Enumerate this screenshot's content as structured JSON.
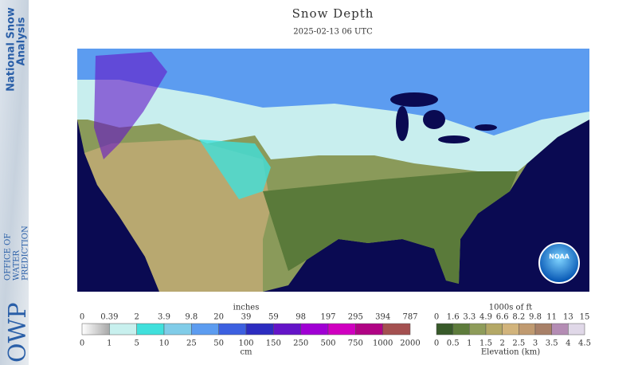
{
  "sidebar": {
    "title_lines": [
      "National Snow",
      "Analysis"
    ],
    "org": "OWP",
    "org_lines": [
      "OFFICE OF",
      "WATER",
      "PREDICTION"
    ]
  },
  "header": {
    "title": "Snow Depth",
    "subtitle": "2025-02-13 06 UTC"
  },
  "map": {
    "logo": "NOAA"
  },
  "legends": [
    {
      "top_unit": "inches",
      "top_labels": [
        0,
        0.39,
        2,
        3.9,
        9.8,
        20,
        39,
        59,
        98,
        197,
        295,
        394,
        787
      ],
      "bottom_unit": "cm",
      "bottom_labels": [
        0,
        1,
        5,
        10,
        25,
        50,
        100,
        150,
        250,
        500,
        750,
        1000,
        2000
      ],
      "colors": [
        "#c8c8c8",
        "#c8f0ee",
        "#40e0dc",
        "#80cce8",
        "#5c9cf0",
        "#3c60e0",
        "#2c2cc0",
        "#6414c8",
        "#a000d4",
        "#d000c0",
        "#b00484",
        "#a45050"
      ]
    },
    {
      "top_unit": "1000s of ft",
      "top_labels": [
        0,
        1.6,
        3.3,
        4.9,
        6.6,
        8.2,
        9.8,
        11,
        13,
        15
      ],
      "bottom_unit": "Elevation (km)",
      "bottom_labels": [
        0,
        0.5,
        1,
        1.5,
        2,
        2.5,
        3,
        3.5,
        4,
        4.5
      ],
      "colors": [
        "#385a2a",
        "#5e7c3c",
        "#8e9c5a",
        "#b4a866",
        "#d2b47c",
        "#c09a70",
        "#a88068",
        "#b48cb4",
        "#e0d8e8"
      ]
    }
  ]
}
